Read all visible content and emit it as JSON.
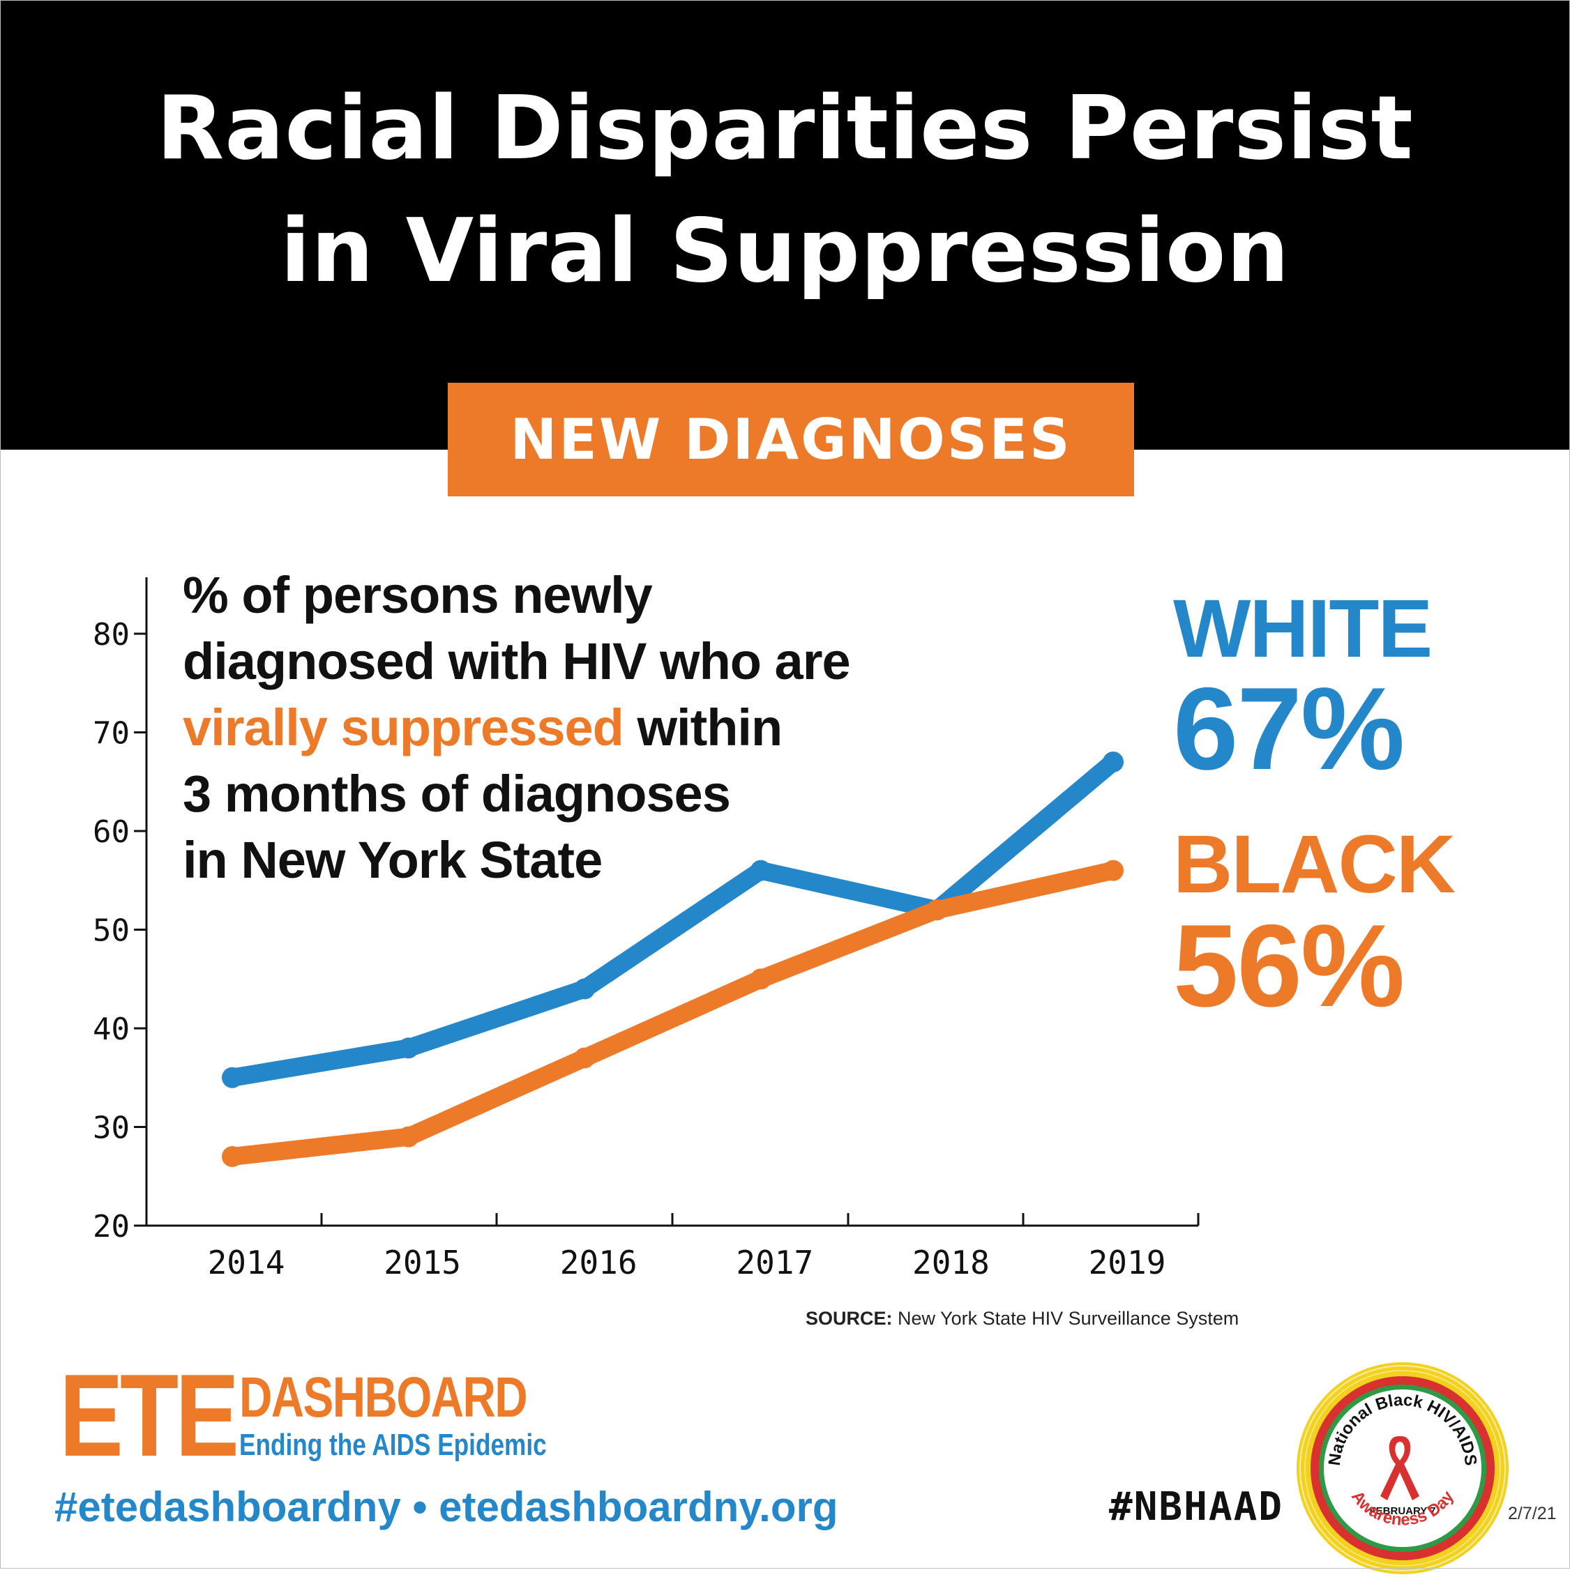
{
  "header": {
    "title_line1": "Racial Disparities Persist",
    "title_line2": "in Viral Suppression",
    "tag": "NEW DIAGNOSES"
  },
  "description": {
    "line1": "% of persons newly",
    "line2": "diagnosed with HIV who are",
    "line3_highlight": "virally suppressed",
    "line3_rest": " within",
    "line4": "3 months of diagnoses",
    "line5": "in New York State"
  },
  "labels": {
    "white_name": "WHITE",
    "white_value": "67%",
    "black_name": "BLACK",
    "black_value": "56%"
  },
  "source": {
    "label": "SOURCE:",
    "text": " New York State HIV Surveillance System"
  },
  "footer": {
    "logo_main": "ETE",
    "logo_dash": "DASHBOARD",
    "logo_sub": "Ending the AIDS Epidemic",
    "hashtag_url": "#etedashboardny • etedashboardny.org",
    "nbhaad": "#NBHAAD",
    "date": "2/7/21",
    "seal_top": "National Black HIV/AIDS",
    "seal_mid": "FEBRUARY 7",
    "seal_bottom": "Awareness Day"
  },
  "colors": {
    "white_series": "#2387c9",
    "black_series": "#ec7a29",
    "background_band": "#000000"
  },
  "chart_data": {
    "type": "line",
    "title": "% of persons newly diagnosed with HIV who are virally suppressed within 3 months of diagnoses in New York State",
    "categories": [
      "2014",
      "2015",
      "2016",
      "2017",
      "2018",
      "2019"
    ],
    "series": [
      {
        "name": "WHITE",
        "values": [
          35,
          38,
          44,
          56,
          52,
          67
        ]
      },
      {
        "name": "BLACK",
        "values": [
          27,
          29,
          37,
          45,
          52,
          56
        ]
      }
    ],
    "ylim": [
      20,
      86
    ],
    "yticks": [
      20,
      30,
      40,
      50,
      60,
      70,
      80
    ],
    "xlabel": "",
    "ylabel": "",
    "grid": false
  }
}
